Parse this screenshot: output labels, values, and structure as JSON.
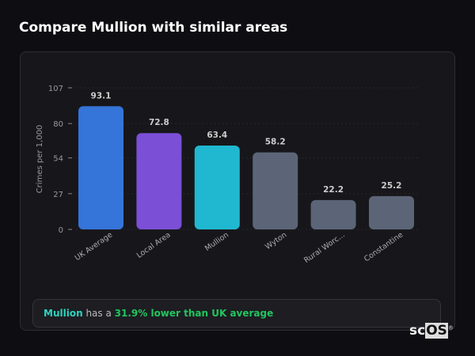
{
  "title": "Compare Mullion with similar areas",
  "summary": {
    "area": "Mullion",
    "middle": " has a ",
    "highlight": "31.9% lower than UK average"
  },
  "logo": {
    "prefix": "sc",
    "boxed": "OS",
    "mark": "®"
  },
  "chart_data": {
    "type": "bar",
    "title": "",
    "xlabel": "",
    "ylabel": "Crimes per 1,000",
    "ylim": [
      0,
      107
    ],
    "yticks": [
      0,
      27,
      54,
      80,
      107
    ],
    "grid": true,
    "categories": [
      "UK Average",
      "Local Area",
      "Mullion",
      "Wyton",
      "Rural Worc...",
      "Constantine"
    ],
    "values": [
      93.1,
      72.8,
      63.4,
      58.2,
      22.2,
      25.2
    ],
    "value_labels": [
      "93.1",
      "72.8",
      "63.4",
      "58.2",
      "22.2",
      "25.2"
    ],
    "colors": [
      "#3574d8",
      "#7b4fd6",
      "#20b8d0",
      "#5b6577",
      "#5b6577",
      "#5b6577"
    ]
  }
}
